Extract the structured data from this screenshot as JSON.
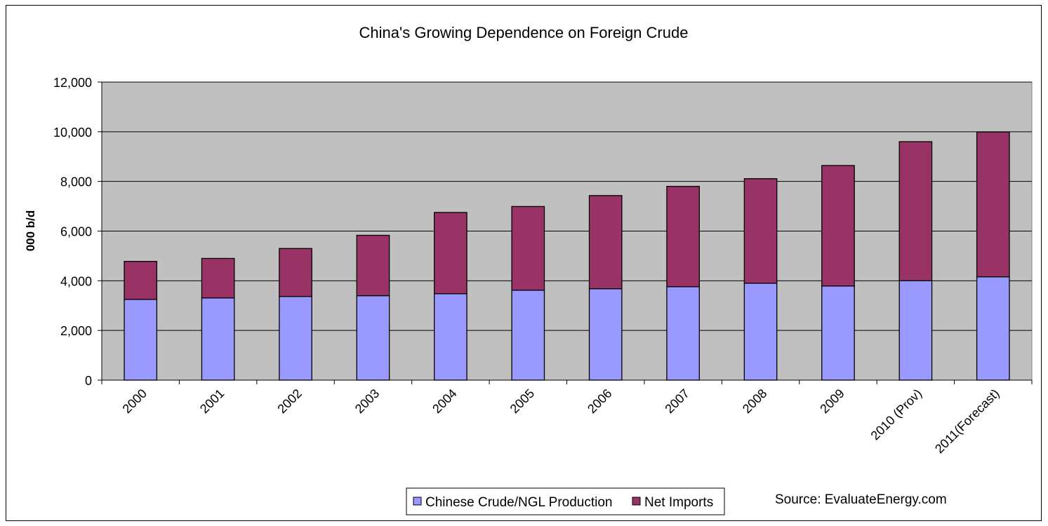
{
  "chart_data": {
    "type": "bar",
    "stacked": true,
    "title": "China's Growing Dependence on Foreign Crude",
    "xlabel": "",
    "ylabel": "000 b/d",
    "ylim": [
      0,
      12000
    ],
    "yticks": [
      0,
      2000,
      4000,
      6000,
      8000,
      10000,
      12000
    ],
    "ytick_labels": [
      "0",
      "2,000",
      "4,000",
      "6,000",
      "8,000",
      "10,000",
      "12,000"
    ],
    "grid": true,
    "categories": [
      "2000",
      "2001",
      "2002",
      "2003",
      "2004",
      "2005",
      "2006",
      "2007",
      "2008",
      "2009",
      "2010 (Prov)",
      "2011(Forecast)"
    ],
    "series": [
      {
        "name": "Chinese Crude/NGL Production",
        "color": "#9999ff",
        "values": [
          3250,
          3310,
          3370,
          3400,
          3480,
          3620,
          3680,
          3760,
          3900,
          3790,
          4000,
          4160
        ]
      },
      {
        "name": "Net Imports",
        "color": "#993366",
        "values": [
          1530,
          1590,
          1930,
          2430,
          3270,
          3370,
          3750,
          4040,
          4210,
          4850,
          5600,
          5830
        ]
      }
    ],
    "legend_position": "bottom-center",
    "plot_background": "#c0c0c0",
    "annotation": "Source: EvaluateEnergy.com"
  }
}
